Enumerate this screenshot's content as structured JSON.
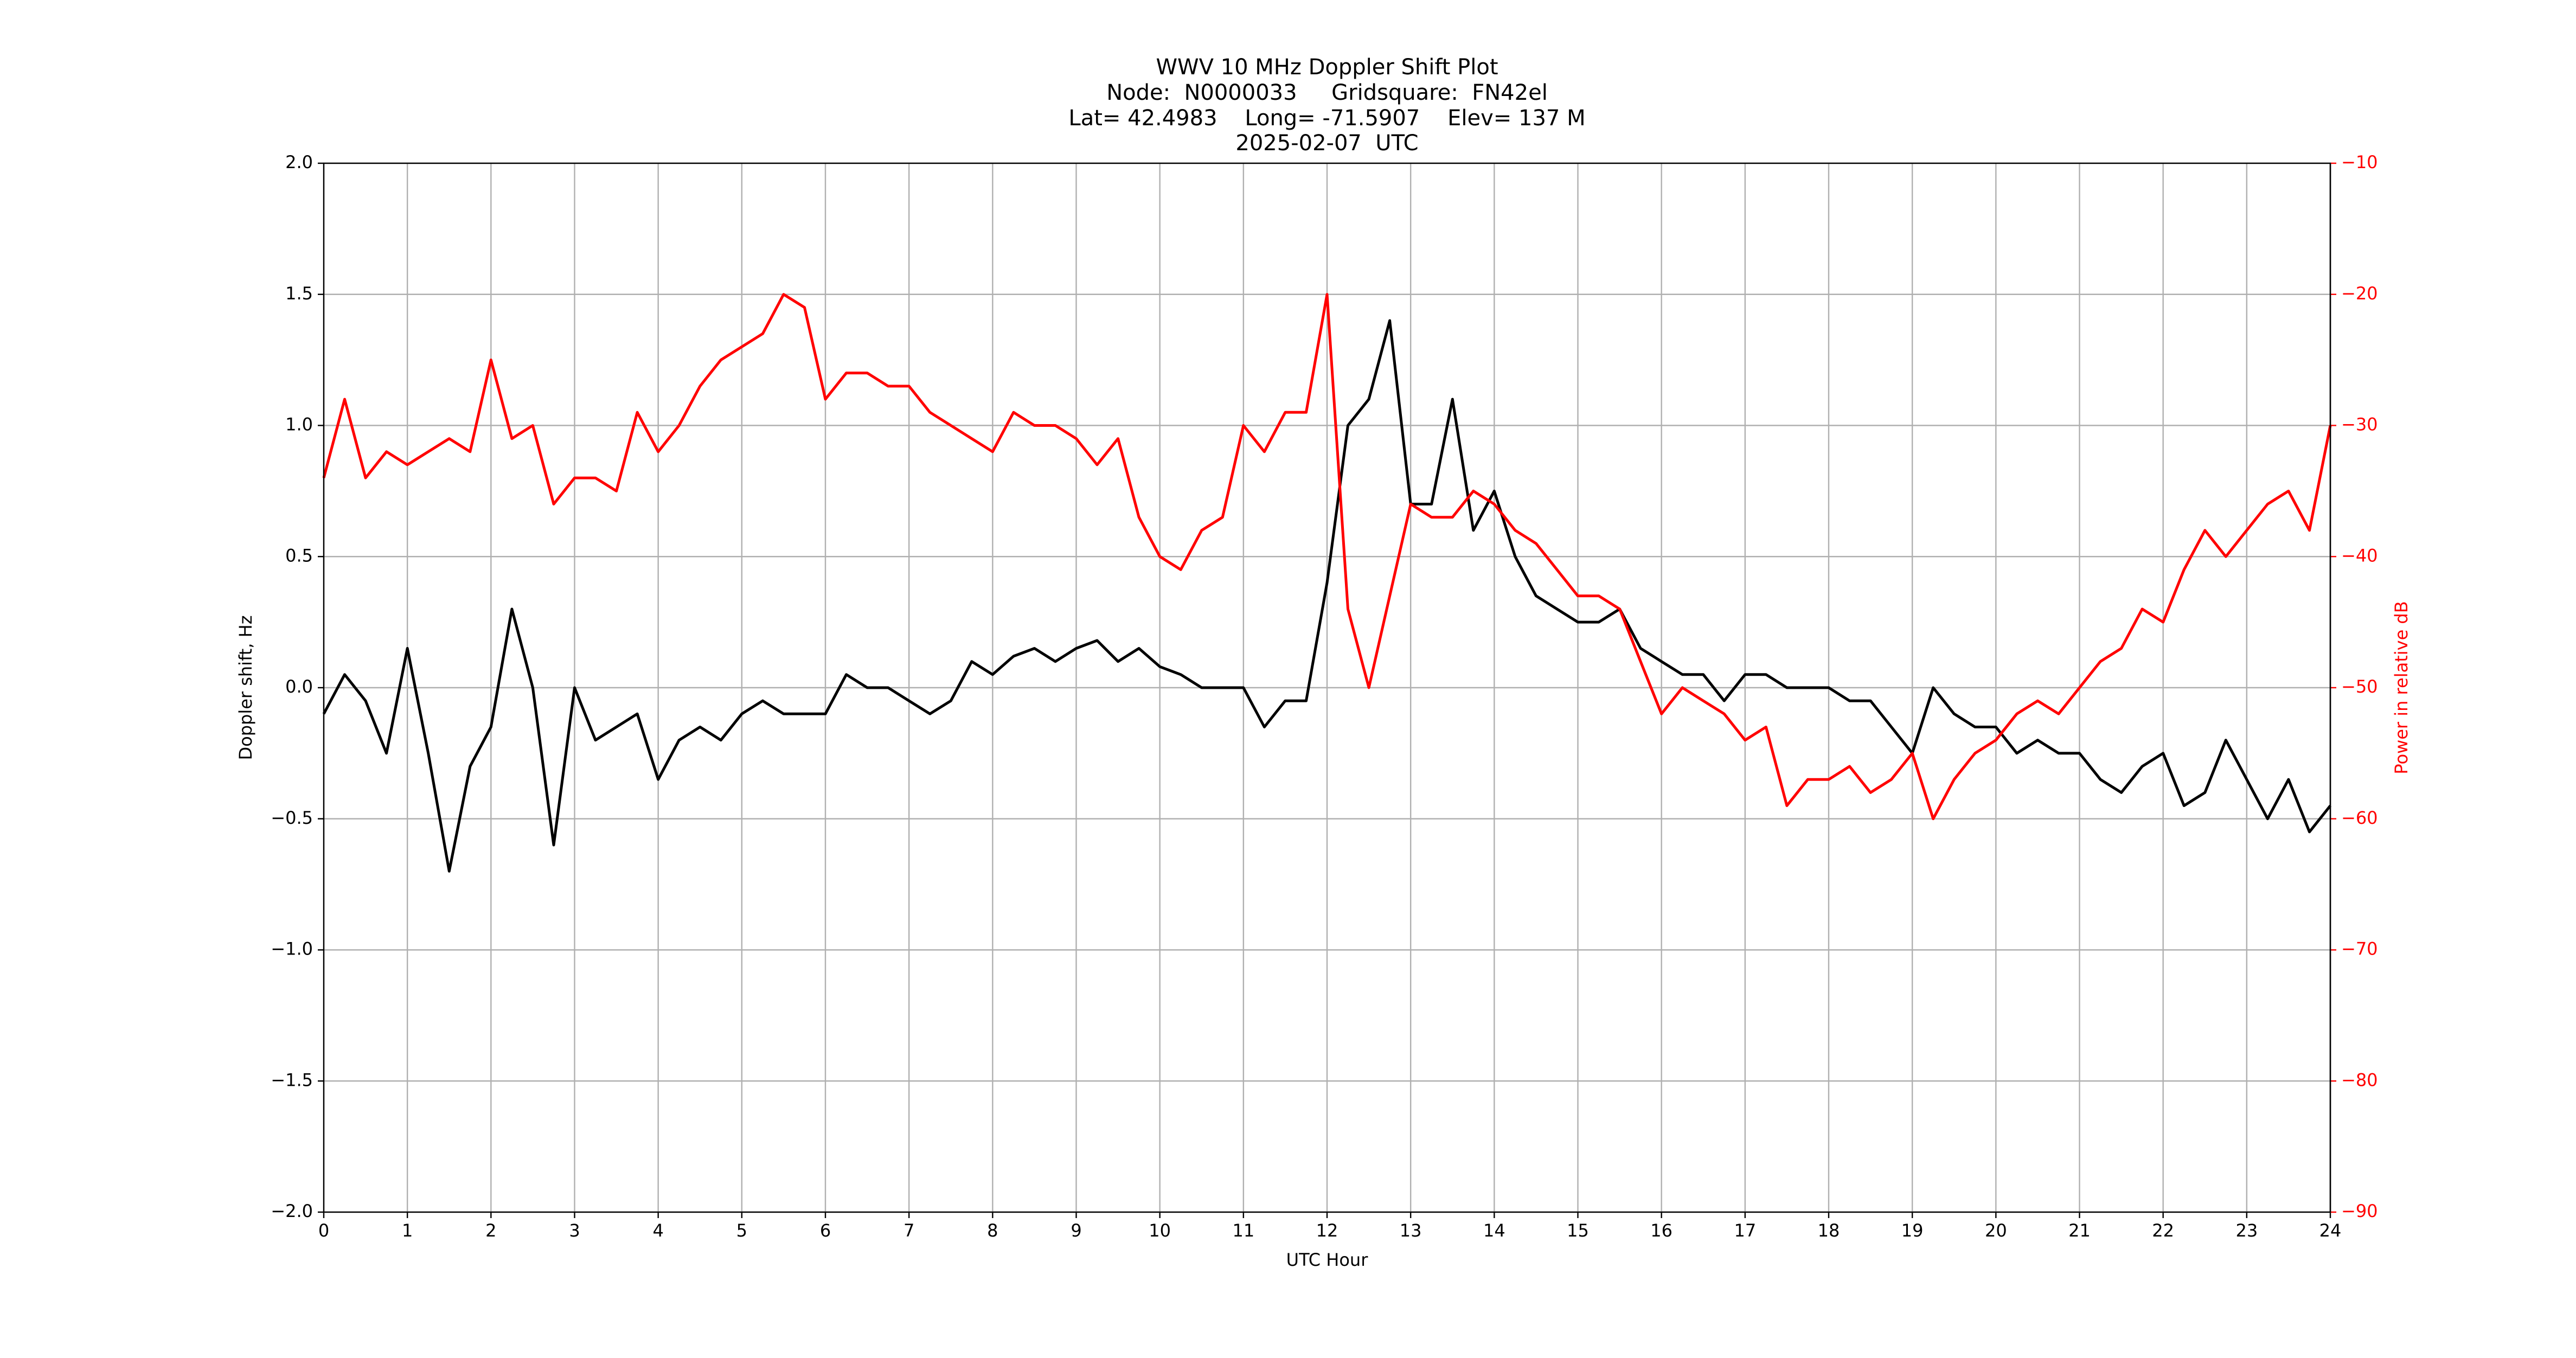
{
  "chart_data": {
    "type": "line",
    "title": "WWV 10 MHz Doppler Shift Plot",
    "subtitle": [
      "Node:  N0000033     Gridsquare:  FN42el",
      "Lat= 42.4983    Long= -71.5907    Elev= 137 M",
      "2025-02-07  UTC"
    ],
    "xlabel": "UTC Hour",
    "ylabel": "Doppler shift, Hz",
    "y2label": "Power in relative dB",
    "xlim": [
      0,
      24
    ],
    "xticks": [
      0,
      1,
      2,
      3,
      4,
      5,
      6,
      7,
      8,
      9,
      10,
      11,
      12,
      13,
      14,
      15,
      16,
      17,
      18,
      19,
      20,
      21,
      22,
      23,
      24
    ],
    "ylim": [
      -2,
      2
    ],
    "yticks": [
      {
        "value": -2,
        "label": "−2.0"
      },
      {
        "value": -1.5,
        "label": "−1.5"
      },
      {
        "value": -1,
        "label": "−1.0"
      },
      {
        "value": -0.5,
        "label": "−0.5"
      },
      {
        "value": 0,
        "label": "0.0"
      },
      {
        "value": 0.5,
        "label": "0.5"
      },
      {
        "value": 1,
        "label": "1.0"
      },
      {
        "value": 1.5,
        "label": "1.5"
      },
      {
        "value": 2,
        "label": "2.0"
      }
    ],
    "y2lim": [
      -90,
      -10
    ],
    "y2ticks": [
      {
        "value": -90,
        "label": "−90"
      },
      {
        "value": -80,
        "label": "−80"
      },
      {
        "value": -70,
        "label": "−70"
      },
      {
        "value": -60,
        "label": "−60"
      },
      {
        "value": -50,
        "label": "−50"
      },
      {
        "value": -40,
        "label": "−40"
      },
      {
        "value": -30,
        "label": "−30"
      },
      {
        "value": -20,
        "label": "−20"
      },
      {
        "value": -10,
        "label": "−10"
      }
    ],
    "y2color": "#ff0000",
    "grid": true,
    "x": [
      0,
      0.25,
      0.5,
      0.75,
      1,
      1.25,
      1.5,
      1.75,
      2,
      2.25,
      2.5,
      2.75,
      3,
      3.25,
      3.5,
      3.75,
      4,
      4.25,
      4.5,
      4.75,
      5,
      5.25,
      5.5,
      5.75,
      6,
      6.25,
      6.5,
      6.75,
      7,
      7.25,
      7.5,
      7.75,
      8,
      8.25,
      8.5,
      8.75,
      9,
      9.25,
      9.5,
      9.75,
      10,
      10.25,
      10.5,
      10.75,
      11,
      11.25,
      11.5,
      11.75,
      12,
      12.25,
      12.5,
      12.75,
      13,
      13.25,
      13.5,
      13.75,
      14,
      14.25,
      14.5,
      14.75,
      15,
      15.25,
      15.5,
      15.75,
      16,
      16.25,
      16.5,
      16.75,
      17,
      17.25,
      17.5,
      17.75,
      18,
      18.25,
      18.5,
      18.75,
      19,
      19.25,
      19.5,
      19.75,
      20,
      20.25,
      20.5,
      20.75,
      21,
      21.25,
      21.5,
      21.75,
      22,
      22.25,
      22.5,
      22.75,
      23,
      23.25,
      23.5,
      23.75,
      24
    ],
    "series": [
      {
        "color": "#000000",
        "axis": "y",
        "values": [
          -0.1,
          0.05,
          -0.05,
          -0.25,
          0.15,
          -0.25,
          -0.7,
          -0.3,
          -0.15,
          0.3,
          0.0,
          -0.6,
          0.0,
          -0.2,
          -0.15,
          -0.1,
          -0.35,
          -0.2,
          -0.15,
          -0.2,
          -0.1,
          -0.05,
          -0.1,
          -0.1,
          -0.1,
          0.05,
          0.0,
          0.0,
          -0.05,
          -0.1,
          -0.05,
          0.1,
          0.05,
          0.12,
          0.15,
          0.1,
          0.15,
          0.18,
          0.1,
          0.15,
          0.08,
          0.05,
          0.0,
          0.0,
          0.0,
          -0.15,
          -0.05,
          -0.05,
          0.4,
          1.0,
          1.1,
          1.4,
          0.7,
          0.7,
          1.1,
          0.6,
          0.75,
          0.5,
          0.35,
          0.3,
          0.25,
          0.25,
          0.3,
          0.15,
          0.1,
          0.05,
          0.05,
          -0.05,
          0.05,
          0.05,
          0.0,
          0.0,
          0.0,
          -0.05,
          -0.05,
          -0.15,
          -0.25,
          0.0,
          -0.1,
          -0.15,
          -0.15,
          -0.25,
          -0.2,
          -0.25,
          -0.25,
          -0.35,
          -0.4,
          -0.3,
          -0.25,
          -0.45,
          -0.4,
          -0.2,
          -0.35,
          -0.5,
          -0.35,
          -0.55,
          -0.45
        ]
      },
      {
        "color": "#ff0000",
        "axis": "y2",
        "values": [
          -34,
          -28,
          -34,
          -32,
          -33,
          -32,
          -31,
          -32,
          -25,
          -31,
          -30,
          -36,
          -34,
          -34,
          -35,
          -29,
          -32,
          -30,
          -27,
          -25,
          -24,
          -23,
          -20,
          -21,
          -28,
          -26,
          -26,
          -27,
          -27,
          -29,
          -30,
          -31,
          -32,
          -29,
          -30,
          -30,
          -31,
          -33,
          -31,
          -37,
          -40,
          -41,
          -38,
          -37,
          -30,
          -32,
          -29,
          -29,
          -20,
          -44,
          -50,
          -43,
          -36,
          -37,
          -37,
          -35,
          -36,
          -38,
          -39,
          -41,
          -43,
          -43,
          -44,
          -48,
          -52,
          -50,
          -51,
          -52,
          -54,
          -53,
          -59,
          -57,
          -57,
          -56,
          -58,
          -57,
          -55,
          -60,
          -57,
          -55,
          -54,
          -52,
          -51,
          -52,
          -50,
          -48,
          -47,
          -44,
          -45,
          -41,
          -38,
          -40,
          -38,
          -36,
          -35,
          -38,
          -30
        ]
      }
    ]
  }
}
